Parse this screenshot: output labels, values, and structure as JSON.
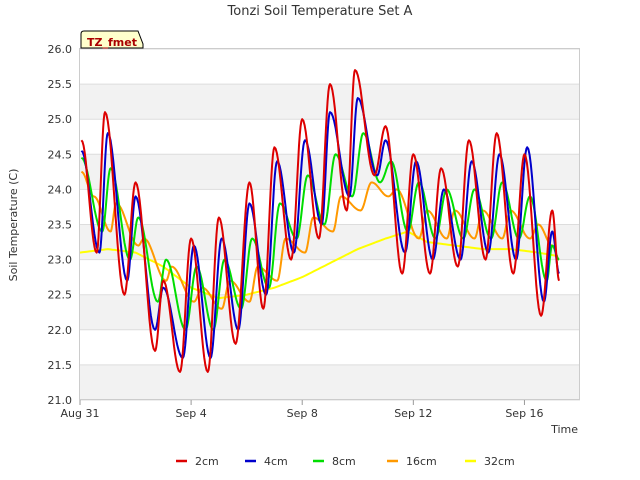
{
  "chart_data": {
    "type": "line",
    "title": "Tonzi Soil Temperature Set A",
    "xlabel": "Time",
    "ylabel": "Soil Temperature (C)",
    "badge": "TZ_fmet",
    "ylim": [
      21.0,
      26.0
    ],
    "yticks": [
      "21.0",
      "21.5",
      "22.0",
      "22.5",
      "23.0",
      "23.5",
      "24.0",
      "24.5",
      "25.0",
      "25.5",
      "26.0"
    ],
    "xlim_days": [
      0,
      18
    ],
    "xticks": [
      {
        "label": "Aug 31",
        "day": 0
      },
      {
        "label": "Sep 4",
        "day": 4
      },
      {
        "label": "Sep 8",
        "day": 8
      },
      {
        "label": "Sep 12",
        "day": 12
      },
      {
        "label": "Sep 16",
        "day": 16
      }
    ],
    "grid": true,
    "legend_position": "bottom",
    "series": [
      {
        "name": "2cm",
        "color": "#dd0000",
        "max": [
          [
            0.9,
            25.1
          ],
          [
            2.0,
            24.1
          ],
          [
            3.0,
            22.7
          ],
          [
            4.0,
            23.3
          ],
          [
            5.0,
            23.6
          ],
          [
            6.1,
            24.1
          ],
          [
            7.0,
            24.6
          ],
          [
            8.0,
            25.0
          ],
          [
            9.0,
            25.5
          ],
          [
            9.9,
            25.7
          ],
          [
            11.0,
            24.9
          ],
          [
            12.0,
            24.5
          ],
          [
            13.0,
            24.3
          ],
          [
            14.0,
            24.7
          ],
          [
            15.0,
            24.8
          ],
          [
            16.0,
            24.5
          ],
          [
            17.0,
            23.7
          ]
        ],
        "min": [
          [
            0.6,
            23.1
          ],
          [
            1.6,
            22.5
          ],
          [
            2.7,
            21.7
          ],
          [
            3.6,
            21.4
          ],
          [
            4.6,
            21.4
          ],
          [
            5.6,
            21.8
          ],
          [
            6.6,
            22.3
          ],
          [
            7.6,
            23.0
          ],
          [
            8.6,
            23.3
          ],
          [
            9.6,
            23.7
          ],
          [
            10.6,
            24.2
          ],
          [
            11.6,
            22.8
          ],
          [
            12.6,
            22.8
          ],
          [
            13.6,
            22.9
          ],
          [
            14.6,
            23.0
          ],
          [
            15.6,
            22.8
          ],
          [
            16.6,
            22.2
          ]
        ],
        "end": 22.7
      },
      {
        "name": "4cm",
        "color": "#0000cc",
        "max": [
          [
            1.0,
            24.8
          ],
          [
            2.0,
            23.9
          ],
          [
            3.0,
            22.6
          ],
          [
            4.1,
            23.2
          ],
          [
            5.1,
            23.3
          ],
          [
            6.1,
            23.8
          ],
          [
            7.1,
            24.4
          ],
          [
            8.1,
            24.7
          ],
          [
            9.0,
            25.1
          ],
          [
            10.0,
            25.3
          ],
          [
            11.0,
            24.7
          ],
          [
            12.1,
            24.4
          ],
          [
            13.1,
            24.0
          ],
          [
            14.1,
            24.4
          ],
          [
            15.1,
            24.5
          ],
          [
            16.1,
            24.6
          ],
          [
            17.0,
            23.4
          ]
        ],
        "min": [
          [
            0.7,
            23.1
          ],
          [
            1.7,
            22.7
          ],
          [
            2.7,
            22.0
          ],
          [
            3.7,
            21.6
          ],
          [
            4.7,
            21.6
          ],
          [
            5.7,
            22.0
          ],
          [
            6.7,
            22.5
          ],
          [
            7.7,
            23.1
          ],
          [
            8.7,
            23.5
          ],
          [
            9.7,
            23.9
          ],
          [
            10.7,
            24.2
          ],
          [
            11.7,
            23.1
          ],
          [
            12.7,
            23.0
          ],
          [
            13.7,
            23.0
          ],
          [
            14.7,
            23.1
          ],
          [
            15.7,
            23.0
          ],
          [
            16.7,
            22.4
          ]
        ],
        "end": 22.8
      },
      {
        "name": "8cm",
        "color": "#00dd00",
        "max": [
          [
            1.1,
            24.3
          ],
          [
            2.1,
            23.6
          ],
          [
            3.1,
            23.0
          ],
          [
            4.2,
            22.9
          ],
          [
            5.2,
            23.0
          ],
          [
            6.2,
            23.3
          ],
          [
            7.2,
            23.8
          ],
          [
            8.2,
            24.2
          ],
          [
            9.2,
            24.5
          ],
          [
            10.2,
            24.8
          ],
          [
            11.2,
            24.4
          ],
          [
            12.2,
            24.1
          ],
          [
            13.2,
            24.0
          ],
          [
            14.2,
            24.0
          ],
          [
            15.2,
            24.1
          ],
          [
            16.2,
            23.9
          ],
          [
            17.0,
            23.2
          ]
        ],
        "min": [
          [
            0.8,
            23.4
          ],
          [
            1.8,
            23.0
          ],
          [
            2.8,
            22.4
          ],
          [
            3.8,
            22.0
          ],
          [
            4.8,
            22.0
          ],
          [
            5.8,
            22.3
          ],
          [
            6.8,
            22.6
          ],
          [
            7.8,
            23.3
          ],
          [
            8.8,
            23.5
          ],
          [
            9.8,
            23.9
          ],
          [
            10.8,
            24.1
          ],
          [
            11.8,
            23.4
          ],
          [
            12.8,
            23.3
          ],
          [
            13.8,
            23.3
          ],
          [
            14.8,
            23.3
          ],
          [
            15.8,
            23.3
          ],
          [
            16.8,
            22.7
          ]
        ],
        "end": 23.0
      },
      {
        "name": "16cm",
        "color": "#ff9900",
        "max": [
          [
            1.3,
            23.8
          ],
          [
            2.3,
            23.3
          ],
          [
            3.3,
            22.9
          ],
          [
            4.4,
            22.6
          ],
          [
            5.4,
            22.7
          ],
          [
            6.4,
            22.9
          ],
          [
            7.4,
            23.3
          ],
          [
            8.4,
            23.6
          ],
          [
            9.4,
            23.9
          ],
          [
            10.5,
            24.1
          ],
          [
            11.4,
            24.0
          ],
          [
            12.5,
            23.7
          ],
          [
            13.5,
            23.7
          ],
          [
            14.5,
            23.7
          ],
          [
            15.5,
            23.7
          ],
          [
            16.5,
            23.5
          ],
          [
            17.0,
            23.2
          ]
        ],
        "min": [
          [
            0.5,
            23.9
          ],
          [
            1.1,
            23.4
          ],
          [
            2.1,
            23.2
          ],
          [
            3.1,
            22.7
          ],
          [
            4.1,
            22.4
          ],
          [
            5.1,
            22.3
          ],
          [
            6.1,
            22.4
          ],
          [
            7.1,
            22.7
          ],
          [
            8.1,
            23.1
          ],
          [
            9.1,
            23.4
          ],
          [
            10.1,
            23.7
          ],
          [
            11.1,
            23.9
          ],
          [
            12.2,
            23.3
          ],
          [
            13.2,
            23.3
          ],
          [
            14.2,
            23.3
          ],
          [
            15.2,
            23.3
          ],
          [
            16.2,
            23.3
          ]
        ],
        "end": 23.0
      },
      {
        "name": "32cm",
        "color": "#ffff00",
        "trend": [
          [
            0,
            23.1
          ],
          [
            1,
            23.15
          ],
          [
            2,
            23.1
          ],
          [
            3,
            22.9
          ],
          [
            4,
            22.6
          ],
          [
            5,
            22.45
          ],
          [
            6,
            22.5
          ],
          [
            7,
            22.6
          ],
          [
            8,
            22.75
          ],
          [
            9,
            22.95
          ],
          [
            10,
            23.15
          ],
          [
            11,
            23.3
          ],
          [
            11.8,
            23.4
          ],
          [
            12.5,
            23.25
          ],
          [
            13.5,
            23.2
          ],
          [
            14.5,
            23.15
          ],
          [
            15.5,
            23.15
          ],
          [
            16.5,
            23.1
          ],
          [
            17.2,
            23.05
          ]
        ]
      }
    ]
  }
}
